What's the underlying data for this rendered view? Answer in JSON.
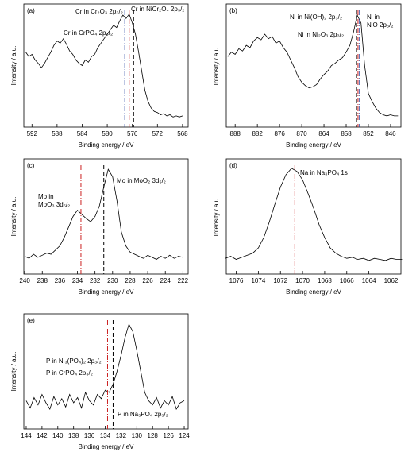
{
  "chart_data": [
    {
      "type": "line",
      "panel": "(a)",
      "xlabel": "Binding energy / eV",
      "ylabel": "Intensity / a.u.",
      "xlim": [
        593.3,
        567.1
      ],
      "ylim": [
        -5,
        105
      ],
      "xticks": [
        592,
        588,
        584,
        580,
        576,
        572,
        568
      ],
      "x": [
        593,
        592.5,
        592,
        591.5,
        591,
        590.5,
        590,
        589.5,
        589,
        588.5,
        588,
        587.5,
        587,
        586.5,
        586,
        585.5,
        585,
        584.5,
        584,
        583.5,
        583,
        582.5,
        582,
        581.5,
        581,
        580.5,
        580,
        579.5,
        579,
        578.5,
        578,
        577.5,
        577,
        576.5,
        576,
        575.5,
        575,
        574.5,
        574,
        573.5,
        573,
        572.5,
        572,
        571.5,
        571,
        570.5,
        570,
        569.5,
        569,
        568.5,
        568
      ],
      "series": [
        {
          "color": "#000000",
          "values": [
            62,
            58,
            60,
            55,
            52,
            48,
            52,
            57,
            62,
            68,
            72,
            70,
            74,
            69,
            63,
            60,
            55,
            52,
            50,
            55,
            53,
            58,
            60,
            66,
            70,
            74,
            78,
            82,
            86,
            84,
            90,
            95,
            92,
            96,
            88,
            78,
            62,
            45,
            28,
            18,
            12,
            9,
            8,
            6,
            7,
            5,
            6,
            4,
            5,
            4,
            5
          ]
        }
      ],
      "annotations": [
        {
          "label": [
            "Cr in CrPO₄ 2p₃/₂"
          ],
          "x": 577.2,
          "color": "#1f3fa0",
          "linestyle": "dashdot"
        },
        {
          "label": [
            "Cr in Cr₂O₃ 2p₃/₂"
          ],
          "x": 576.5,
          "color": "#cc2222",
          "linestyle": "dashdot"
        },
        {
          "label": [
            "Cr in NiCr₂O₄ 2p₃/₂"
          ],
          "x": 575.8,
          "color": "#000000",
          "linestyle": "dashed"
        }
      ]
    },
    {
      "type": "line",
      "panel": "(b)",
      "xlabel": "Binding energy / eV",
      "ylabel": "Intensity / a.u.",
      "xlim": [
        890.4,
        843.2
      ],
      "ylim": [
        -5,
        105
      ],
      "xticks": [
        888,
        882,
        876,
        870,
        864,
        858,
        852,
        846
      ],
      "x": [
        890,
        889,
        888,
        887,
        886,
        885,
        884,
        883,
        882,
        881,
        880,
        879,
        878,
        877,
        876,
        875,
        874,
        873,
        872,
        871,
        870,
        869,
        868,
        867,
        866,
        865,
        864,
        863,
        862,
        861,
        860,
        859,
        858,
        857,
        856,
        855,
        854,
        853,
        852,
        851,
        850,
        849,
        848,
        847,
        846,
        845,
        844
      ],
      "series": [
        {
          "color": "#000000",
          "values": [
            58,
            62,
            60,
            65,
            63,
            68,
            66,
            72,
            75,
            73,
            78,
            74,
            76,
            70,
            72,
            66,
            62,
            55,
            48,
            40,
            35,
            32,
            30,
            31,
            33,
            38,
            42,
            45,
            50,
            52,
            55,
            57,
            62,
            68,
            80,
            95,
            88,
            50,
            25,
            18,
            12,
            8,
            6,
            5,
            6,
            5,
            5
          ]
        }
      ],
      "annotations": [
        {
          "label": [
            "Ni in Ni(OH)₂ 2p₃/₂"
          ],
          "x": 855.2,
          "color": "#000000",
          "linestyle": "dashed"
        },
        {
          "label": [
            "Ni in Ni₂O₃ 2p₃/₂"
          ],
          "x": 854.8,
          "color": "#cc2222",
          "linestyle": "dashdot"
        },
        {
          "label": [
            "Ni in",
            "NiO 2p₃/₂"
          ],
          "x": 854.4,
          "color": "#1f3fa0",
          "linestyle": "dashdot"
        }
      ]
    },
    {
      "type": "line",
      "panel": "(c)",
      "xlabel": "Binding energy / eV",
      "ylabel": "Intensity / a.u.",
      "xlim": [
        240.1,
        221.4
      ],
      "ylim": [
        -5,
        105
      ],
      "xticks": [
        240,
        238,
        236,
        234,
        232,
        230,
        228,
        226,
        224,
        222
      ],
      "x": [
        240,
        239.5,
        239,
        238.5,
        238,
        237.5,
        237,
        236.5,
        236,
        235.5,
        235,
        234.5,
        234,
        233.5,
        233,
        232.5,
        232,
        231.5,
        231,
        230.5,
        230,
        229.5,
        229,
        228.5,
        228,
        227.5,
        227,
        226.5,
        226,
        225.5,
        225,
        224.5,
        224,
        223.5,
        223,
        222.5,
        222
      ],
      "series": [
        {
          "color": "#000000",
          "values": [
            12,
            10,
            14,
            11,
            13,
            15,
            14,
            18,
            22,
            30,
            40,
            50,
            56,
            52,
            48,
            45,
            50,
            60,
            78,
            95,
            88,
            65,
            35,
            22,
            16,
            14,
            12,
            10,
            13,
            11,
            9,
            12,
            10,
            13,
            10,
            12,
            11
          ]
        }
      ],
      "annotations": [
        {
          "label": [
            "Mo in",
            "MoO₃ 3d₅/₂"
          ],
          "x": 233.6,
          "color": "#cc2222",
          "linestyle": "dashdot"
        },
        {
          "label": [
            "Mo in MoO₂ 3d₅/₂"
          ],
          "x": 231.0,
          "color": "#000000",
          "linestyle": "dashed"
        }
      ]
    },
    {
      "type": "line",
      "panel": "(d)",
      "xlabel": "Binding energy / eV",
      "ylabel": "Intensity / a.u.",
      "xlim": [
        1076.9,
        1061.1
      ],
      "ylim": [
        -5,
        105
      ],
      "xticks": [
        1076,
        1074,
        1072,
        1070,
        1068,
        1066,
        1064,
        1062
      ],
      "x": [
        1077,
        1076.5,
        1076,
        1075.5,
        1075,
        1074.5,
        1074,
        1073.5,
        1073,
        1072.5,
        1072,
        1071.5,
        1071,
        1070.5,
        1070,
        1069.5,
        1069,
        1068.5,
        1068,
        1067.5,
        1067,
        1066.5,
        1066,
        1065.5,
        1065,
        1064.5,
        1064,
        1063.5,
        1063,
        1062.5,
        1062,
        1061.5,
        1061
      ],
      "series": [
        {
          "color": "#000000",
          "values": [
            10,
            12,
            9,
            11,
            13,
            15,
            20,
            30,
            45,
            62,
            78,
            90,
            96,
            93,
            85,
            72,
            58,
            42,
            30,
            20,
            15,
            12,
            10,
            11,
            9,
            10,
            8,
            10,
            9,
            8,
            10,
            9,
            9
          ]
        }
      ],
      "annotations": [
        {
          "label": [
            "Na in Na₃PO₄ 1s"
          ],
          "x": 1070.7,
          "color": "#cc2222",
          "linestyle": "dashdot"
        }
      ]
    },
    {
      "type": "line",
      "panel": "(e)",
      "xlabel": "Binding energy / eV",
      "ylabel": "Intensity / a.u.",
      "xlim": [
        144.3,
        123.5
      ],
      "ylim": [
        -5,
        105
      ],
      "xticks": [
        144,
        142,
        140,
        138,
        136,
        134,
        132,
        130,
        128,
        126,
        124
      ],
      "x": [
        144,
        143.5,
        143,
        142.5,
        142,
        141.5,
        141,
        140.5,
        140,
        139.5,
        139,
        138.5,
        138,
        137.5,
        137,
        136.5,
        136,
        135.5,
        135,
        134.5,
        134,
        133.5,
        133,
        132.5,
        132,
        131.5,
        131,
        130.5,
        130,
        129.5,
        129,
        128.5,
        128,
        127.5,
        127,
        126.5,
        126,
        125.5,
        125,
        124.5,
        124
      ],
      "series": [
        {
          "color": "#000000",
          "values": [
            22,
            15,
            25,
            18,
            28,
            20,
            14,
            26,
            18,
            24,
            16,
            28,
            20,
            25,
            15,
            30,
            22,
            18,
            28,
            24,
            32,
            30,
            38,
            50,
            65,
            82,
            95,
            88,
            70,
            50,
            30,
            22,
            18,
            25,
            15,
            22,
            18,
            26,
            14,
            20,
            22
          ]
        }
      ],
      "annotations": [
        {
          "label": [
            "P in Ni₃(PO₄)₂ 2p₃/₂"
          ],
          "x": 133.7,
          "color": "#cc2222",
          "linestyle": "dashdot"
        },
        {
          "label": [
            "P in CrPO₄ 2p₃/₂"
          ],
          "x": 133.4,
          "color": "#1f3fa0",
          "linestyle": "dashdot"
        },
        {
          "label": [
            "P in Na₃PO₄ 2p₃/₂"
          ],
          "x": 133.0,
          "color": "#000000",
          "linestyle": "dashed"
        }
      ]
    }
  ]
}
